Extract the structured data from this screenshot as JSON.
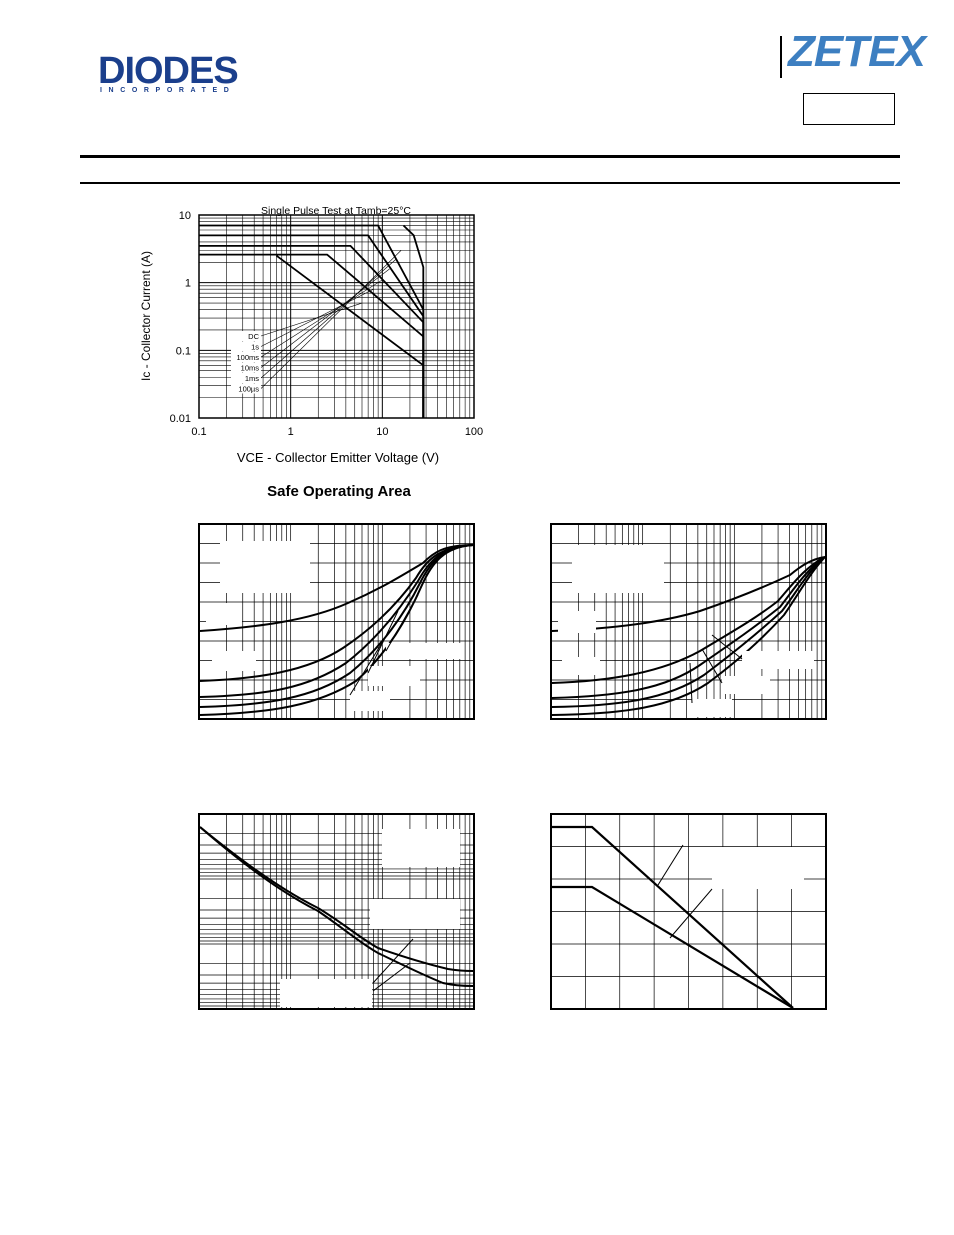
{
  "header": {
    "diodes_logo": "DIODES",
    "diodes_tagline": "INCORPORATED",
    "zetex_logo": "ZETEX",
    "brand_color": "#1b3f8c",
    "zetex_color": "#3d7fc1"
  },
  "soa_chart": {
    "title": "Safe Operating Area",
    "subtitle": "Single Pulse Test at Tamb=25°C",
    "ylabel": "Ic - Collector Current (A)",
    "xlabel": "VCE - Collector Emitter Voltage (V)",
    "x_ticks": [
      "0.1",
      "1",
      "10",
      "100"
    ],
    "y_ticks": [
      "10",
      "1",
      "0.1",
      "0.01"
    ],
    "legend": [
      "DC",
      "1s",
      "100ms",
      "10ms",
      "1ms",
      "100µs"
    ]
  },
  "chart_data": [
    {
      "type": "line",
      "title": "Safe Operating Area",
      "xlabel": "VCE - Collector Emitter Voltage (V)",
      "ylabel": "Ic - Collector Current (A)",
      "xscale": "log",
      "yscale": "log",
      "xlim": [
        0.1,
        100
      ],
      "ylim": [
        0.01,
        10
      ],
      "grid": true,
      "legend_position": "bottom-left",
      "series": [
        {
          "name": "DC",
          "x": [
            0.7,
            28,
            28
          ],
          "y": [
            2.5,
            0.06,
            0.01
          ]
        },
        {
          "name": "1s",
          "x": [
            0.1,
            2.5,
            28,
            28
          ],
          "y": [
            2.6,
            2.6,
            0.16,
            0.01
          ]
        },
        {
          "name": "100ms",
          "x": [
            0.1,
            4.5,
            28,
            28
          ],
          "y": [
            3.5,
            3.5,
            0.26,
            0.01
          ]
        },
        {
          "name": "10ms",
          "x": [
            0.1,
            7,
            28,
            28
          ],
          "y": [
            5,
            5,
            0.32,
            0.01
          ]
        },
        {
          "name": "1ms",
          "x": [
            0.1,
            9,
            28,
            28
          ],
          "y": [
            7,
            7,
            0.4,
            0.01
          ]
        },
        {
          "name": "100µs",
          "x": [
            17,
            22,
            28,
            28
          ],
          "y": [
            7,
            5,
            1.7,
            0.01
          ]
        }
      ]
    }
  ]
}
